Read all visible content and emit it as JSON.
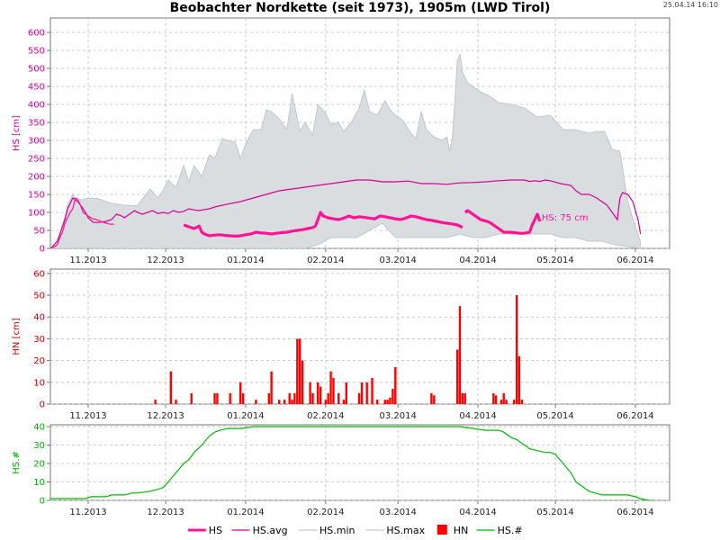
{
  "header": {
    "title": "Beobachter Nordkette (seit 1973), 1905m (LWD Tirol)",
    "timestamp": "25.04.14 16:10"
  },
  "colors": {
    "hs": "#ff1493",
    "hs_avg": "#d60093",
    "band": "#d9dde0",
    "hn": "#ff0000",
    "hs_count": "#00bb00",
    "ylabel_hs": "#d60093",
    "ylabel_hn": "#cc0000",
    "ylabel_count": "#00aa00"
  },
  "chart_data": [
    {
      "type": "area",
      "name": "hs-panel",
      "ylabel": "HS [cm]",
      "ylim": [
        0,
        640
      ],
      "yticks": [
        0,
        50,
        100,
        150,
        200,
        250,
        300,
        350,
        400,
        450,
        500,
        550,
        600
      ],
      "x_unit": "days since 2013-10-01",
      "x_ticks": [
        {
          "day": 31,
          "label": "11.2013"
        },
        {
          "day": 61,
          "label": "12.2013"
        },
        {
          "day": 92,
          "label": "01.2014"
        },
        {
          "day": 123,
          "label": "02.2014"
        },
        {
          "day": 151,
          "label": "03.2014"
        },
        {
          "day": 182,
          "label": "04.2014"
        },
        {
          "day": 212,
          "label": "05.2014"
        },
        {
          "day": 243,
          "label": "06.2014"
        }
      ],
      "annotation": {
        "text": "HS: 75 cm",
        "day": 206,
        "value": 85
      },
      "series": [
        {
          "name": "HS.max",
          "x": [
            15,
            17,
            18,
            19,
            20,
            21,
            22,
            23,
            24,
            25,
            26,
            28,
            31,
            35,
            40,
            45,
            50,
            55,
            58,
            60,
            62,
            65,
            68,
            70,
            72,
            75,
            78,
            80,
            83,
            85,
            88,
            90,
            92,
            95,
            98,
            100,
            102,
            105,
            108,
            110,
            113,
            115,
            118,
            120,
            123,
            125,
            128,
            130,
            133,
            136,
            138,
            140,
            143,
            146,
            148,
            150,
            153,
            156,
            158,
            160,
            162,
            165,
            168,
            170,
            171,
            172,
            173,
            174,
            175,
            176,
            178,
            180,
            183,
            186,
            190,
            195,
            200,
            205,
            210,
            215,
            220,
            225,
            228,
            231,
            234,
            237,
            240,
            243,
            245
          ],
          "values": [
            3,
            4,
            10,
            20,
            40,
            65,
            90,
            120,
            135,
            150,
            140,
            135,
            140,
            138,
            125,
            120,
            118,
            165,
            140,
            160,
            190,
            170,
            230,
            185,
            230,
            200,
            260,
            250,
            305,
            300,
            295,
            250,
            290,
            330,
            330,
            385,
            380,
            360,
            330,
            430,
            325,
            350,
            315,
            400,
            375,
            345,
            350,
            325,
            350,
            390,
            440,
            380,
            370,
            410,
            385,
            370,
            355,
            320,
            305,
            380,
            330,
            310,
            300,
            310,
            270,
            300,
            400,
            520,
            540,
            490,
            460,
            450,
            435,
            425,
            405,
            400,
            390,
            365,
            370,
            330,
            330,
            320,
            325,
            325,
            275,
            270,
            130,
            60,
            20
          ]
        },
        {
          "name": "HS.min",
          "x": [
            15,
            20,
            25,
            30,
            35,
            40,
            41,
            45,
            50,
            55,
            60,
            65,
            70,
            75,
            80,
            85,
            90,
            95,
            100,
            105,
            110,
            115,
            120,
            125,
            130,
            135,
            140,
            145,
            150,
            155,
            160,
            165,
            170,
            175,
            180,
            185,
            190,
            195,
            200,
            205,
            210,
            215,
            220,
            225,
            230,
            235,
            240,
            245
          ],
          "values": [
            0,
            0,
            0,
            0,
            0,
            0,
            0,
            0,
            0,
            0,
            0,
            0,
            0,
            0,
            0,
            0,
            0,
            0,
            0,
            0,
            0,
            0,
            10,
            30,
            30,
            30,
            50,
            70,
            30,
            30,
            30,
            30,
            30,
            40,
            30,
            30,
            40,
            40,
            40,
            40,
            40,
            30,
            30,
            20,
            20,
            10,
            5,
            0
          ]
        },
        {
          "name": "HS.avg",
          "x": [
            15,
            17,
            19,
            20,
            21,
            22,
            23,
            25,
            27,
            28,
            30,
            31,
            33,
            35,
            38,
            40,
            42,
            44,
            45,
            47,
            49,
            50,
            52,
            54,
            56,
            58,
            60,
            62,
            64,
            66,
            68,
            70,
            72,
            74,
            76,
            78,
            80,
            85,
            90,
            95,
            100,
            105,
            110,
            115,
            120,
            125,
            130,
            135,
            140,
            145,
            150,
            155,
            160,
            165,
            170,
            175,
            180,
            185,
            190,
            195,
            200,
            202,
            204,
            206,
            208,
            210,
            214,
            218,
            220,
            222,
            225,
            228,
            230,
            232,
            234,
            236,
            237,
            238,
            240,
            242,
            244,
            245
          ],
          "values": [
            0,
            3,
            20,
            40,
            60,
            80,
            110,
            140,
            130,
            120,
            100,
            85,
            72,
            72,
            75,
            80,
            95,
            90,
            85,
            95,
            105,
            100,
            95,
            100,
            105,
            97,
            100,
            97,
            105,
            100,
            103,
            110,
            107,
            105,
            108,
            110,
            115,
            123,
            130,
            140,
            150,
            160,
            165,
            170,
            175,
            180,
            185,
            190,
            190,
            185,
            185,
            187,
            180,
            180,
            178,
            182,
            183,
            185,
            188,
            190,
            190,
            186,
            188,
            186,
            190,
            188,
            180,
            175,
            160,
            150,
            150,
            140,
            130,
            120,
            100,
            80,
            140,
            155,
            150,
            130,
            80,
            40
          ]
        },
        {
          "name": "HS",
          "segments": [
            {
              "x": [
                15,
                17,
                18,
                19,
                20,
                21,
                22,
                23,
                24,
                25,
                26,
                27,
                28,
                29,
                30,
                31,
                32,
                33,
                34,
                35,
                36,
                37,
                38,
                39,
                40,
                41
              ],
              "values": [
                0,
                2,
                5,
                10,
                30,
                45,
                70,
                85,
                100,
                110,
                140,
                135,
                120,
                100,
                95,
                90,
                85,
                82,
                80,
                78,
                75,
                72,
                70,
                68,
                67,
                67
              ]
            },
            {
              "x": [
                68,
                70,
                72,
                74,
                75,
                76,
                78,
                80,
                82,
                84,
                86,
                88,
                90,
                92,
                94,
                96,
                98,
                100,
                102,
                104,
                106,
                108,
                110,
                112,
                114,
                116,
                118,
                119,
                120,
                121,
                122,
                124,
                126,
                128,
                130,
                132,
                134,
                136,
                138,
                140,
                142,
                144,
                146,
                148,
                150,
                152,
                154,
                156,
                158,
                160,
                162,
                164,
                166,
                168,
                170,
                172,
                174,
                175,
                176
              ],
              "values": [
                65,
                60,
                55,
                62,
                45,
                40,
                35,
                37,
                38,
                36,
                35,
                34,
                35,
                38,
                40,
                45,
                43,
                42,
                40,
                42,
                44,
                45,
                48,
                50,
                52,
                55,
                58,
                62,
                80,
                100,
                90,
                85,
                82,
                80,
                84,
                90,
                85,
                88,
                86,
                84,
                82,
                90,
                88,
                85,
                82,
                80,
                84,
                90,
                88,
                84,
                80,
                78,
                75,
                72,
                70,
                68,
                65,
                62,
                58
              ]
            },
            {
              "x": [
                177,
                178,
                179,
                180,
                181,
                182,
                183,
                184,
                185,
                186,
                187,
                188,
                189,
                190,
                191,
                192,
                194,
                196,
                198,
                200,
                202,
                203,
                204,
                205,
                206
              ],
              "values": [
                100,
                105,
                100,
                95,
                90,
                85,
                80,
                78,
                76,
                74,
                70,
                65,
                60,
                55,
                50,
                45,
                45,
                44,
                42,
                42,
                45,
                65,
                80,
                95,
                75
              ]
            }
          ]
        }
      ]
    },
    {
      "type": "bar",
      "name": "hn-panel",
      "ylabel": "HN [cm]",
      "ylim": [
        0,
        62
      ],
      "yticks": [
        0,
        10,
        20,
        30,
        40,
        50,
        60
      ],
      "x_unit": "days since 2013-10-01",
      "series": [
        {
          "name": "HN",
          "x": [
            57,
            63,
            65,
            71,
            80,
            81,
            86,
            90,
            91,
            96,
            101,
            102,
            105,
            107,
            109,
            110,
            111,
            112,
            113,
            114,
            117,
            118,
            120,
            121,
            123,
            124,
            125,
            126,
            128,
            130,
            131,
            136,
            137,
            139,
            141,
            143,
            146,
            147,
            148,
            149,
            150,
            164,
            165,
            174,
            175,
            176,
            177,
            188,
            189,
            191,
            192,
            193,
            196,
            197,
            198,
            199
          ],
          "values": [
            2,
            15,
            2,
            5,
            5,
            5,
            5,
            10,
            5,
            2,
            5,
            15,
            2,
            2,
            5,
            2,
            5,
            30,
            30,
            20,
            10,
            5,
            10,
            8,
            2,
            5,
            15,
            12,
            5,
            2,
            10,
            5,
            10,
            10,
            12,
            2,
            2,
            2,
            3,
            7,
            17,
            5,
            4,
            25,
            45,
            5,
            5,
            5,
            4,
            2,
            5,
            2,
            2,
            50,
            22,
            2
          ]
        }
      ]
    },
    {
      "type": "line",
      "name": "count-panel",
      "ylabel": "HS.#",
      "ylim": [
        0,
        41
      ],
      "yticks": [
        0,
        10,
        20,
        30,
        40
      ],
      "x_unit": "days since 2013-10-01",
      "series": [
        {
          "name": "HS.#",
          "x": [
            -15,
            0,
            10,
            20,
            25,
            30,
            32,
            35,
            38,
            40,
            42,
            45,
            48,
            50,
            55,
            58,
            60,
            62,
            65,
            68,
            70,
            72,
            75,
            78,
            80,
            82,
            85,
            88,
            90,
            95,
            100,
            110,
            120,
            130,
            140,
            150,
            160,
            165,
            170,
            175,
            180,
            185,
            190,
            192,
            195,
            197,
            200,
            202,
            205,
            208,
            210,
            212,
            215,
            218,
            220,
            225,
            230,
            235,
            240,
            243,
            245,
            248,
            250
          ],
          "values": [
            1,
            1,
            1,
            1,
            1,
            1,
            2,
            2,
            2,
            3,
            3,
            3,
            4,
            4,
            5,
            6,
            7,
            10,
            15,
            20,
            22,
            26,
            30,
            35,
            37,
            38,
            39,
            39,
            39,
            40,
            40,
            40,
            40,
            40,
            40,
            40,
            40,
            40,
            40,
            40,
            39,
            38,
            38,
            37,
            34,
            33,
            30,
            28,
            27,
            26,
            26,
            25,
            20,
            15,
            10,
            5,
            3,
            3,
            3,
            2,
            1,
            0,
            0
          ]
        }
      ]
    }
  ],
  "legend": [
    {
      "label": "HS",
      "kind": "thick-line",
      "color": "#ff1493"
    },
    {
      "label": "HS.avg",
      "kind": "line",
      "color": "#d60093"
    },
    {
      "label": "HS.min",
      "kind": "line",
      "color": "#c8c8c8"
    },
    {
      "label": "HS.max",
      "kind": "line",
      "color": "#c8c8c8"
    },
    {
      "label": "HN",
      "kind": "box",
      "color": "#ff0000"
    },
    {
      "label": "HS.#",
      "kind": "line",
      "color": "#00bb00"
    }
  ]
}
